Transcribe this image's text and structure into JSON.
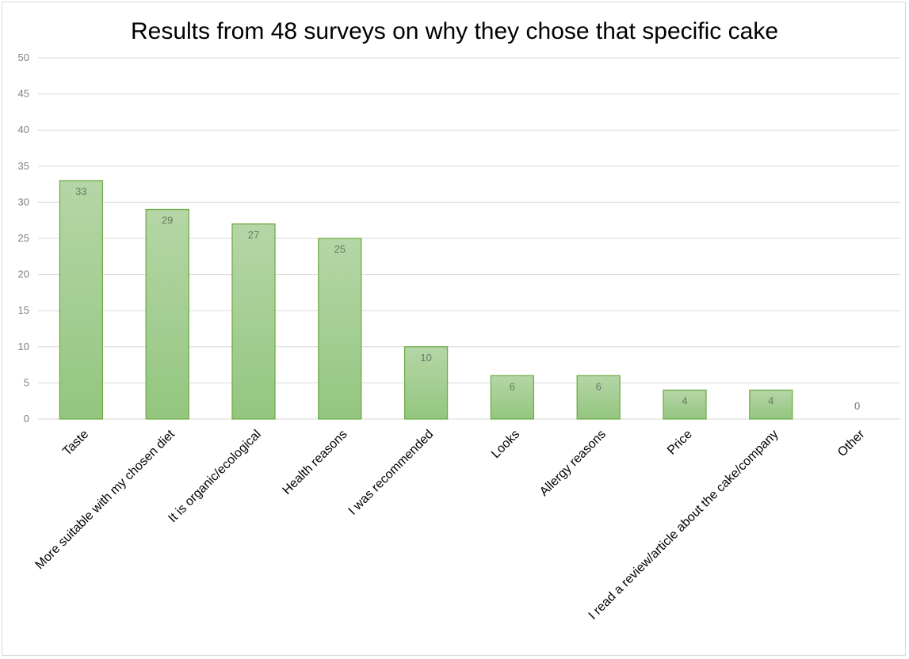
{
  "chart_data": {
    "type": "bar",
    "title": "Results from 48 surveys on why they chose that specific cake",
    "categories": [
      "Taste",
      "More suitable with my chosen diet",
      "It is organic/ecological",
      "Health reasons",
      "I was recommended",
      "Looks",
      "Allergy reasons",
      "Price",
      "I read a review/article about the cake/company",
      "Other"
    ],
    "values": [
      33,
      29,
      27,
      25,
      10,
      6,
      6,
      4,
      4,
      0
    ],
    "ylim": [
      0,
      50
    ],
    "yticks": [
      0,
      5,
      10,
      15,
      20,
      25,
      30,
      35,
      40,
      45,
      50
    ],
    "grid": true,
    "data_labels": true,
    "legend": "none",
    "colors": {
      "bar_fill_top": "#b5d6a7",
      "bar_fill_bottom": "#94c67f",
      "bar_stroke": "#70ad47",
      "gridline": "#d9d9d9",
      "tick_text": "#7f7f7f"
    }
  }
}
